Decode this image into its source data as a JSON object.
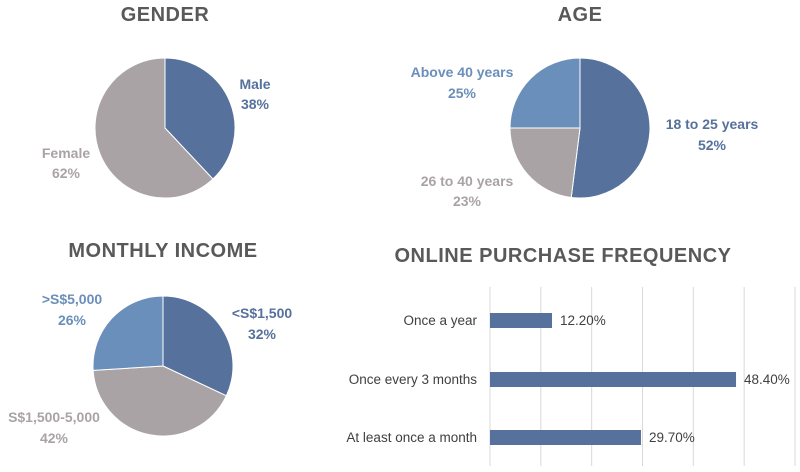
{
  "colors": {
    "dark_blue": "#56719b",
    "light_blue": "#6a8fba",
    "gray": "#aaa3a6",
    "title": "#595959",
    "bar": "#56719b",
    "grid": "#d9d9d9"
  },
  "chart_data": [
    {
      "type": "pie",
      "title": "GENDER",
      "slices": [
        {
          "name": "Male",
          "value": 38,
          "pct_label": "38%"
        },
        {
          "name": "Female",
          "value": 62,
          "pct_label": "62%"
        }
      ]
    },
    {
      "type": "pie",
      "title": "AGE",
      "slices": [
        {
          "name": "18 to 25 years",
          "value": 52,
          "pct_label": "52%"
        },
        {
          "name": "26 to 40 years",
          "value": 23,
          "pct_label": "23%"
        },
        {
          "name": "Above 40 years",
          "value": 25,
          "pct_label": "25%"
        }
      ]
    },
    {
      "type": "pie",
      "title": "MONTHLY INCOME",
      "slices": [
        {
          "name": "<S$1,500",
          "value": 32,
          "pct_label": "32%"
        },
        {
          "name": "S$1,500-5,000",
          "value": 42,
          "pct_label": "42%"
        },
        {
          "name": ">S$5,000",
          "value": 26,
          "pct_label": "26%"
        }
      ]
    },
    {
      "type": "bar",
      "orientation": "horizontal",
      "title": "ONLINE PURCHASE FREQUENCY",
      "categories": [
        "Once a year",
        "Once every 3 months",
        "At least once a month"
      ],
      "values": [
        12.2,
        48.4,
        29.7
      ],
      "value_labels": [
        "12.20%",
        "48.40%",
        "29.70%"
      ],
      "xlim": [
        0,
        60
      ],
      "grid": true
    }
  ]
}
